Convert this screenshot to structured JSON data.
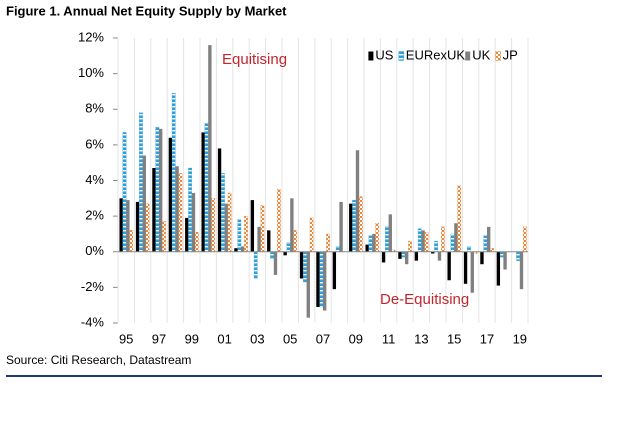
{
  "chart_data": {
    "type": "bar",
    "title": "Figure 1. Annual Net Equity Supply by Market",
    "source": "Source: Citi Research, Datastream",
    "annotations": [
      "Equitising",
      "De-Equitising"
    ],
    "categories": [
      "95",
      null,
      "97",
      null,
      "99",
      null,
      "01",
      null,
      "03",
      null,
      "05",
      null,
      "07",
      null,
      "09",
      null,
      "11",
      null,
      "13",
      null,
      "15",
      null,
      "17",
      null,
      "19"
    ],
    "series": [
      {
        "name": "US",
        "color": "#000000",
        "pattern": "solid",
        "values": [
          3.0,
          2.8,
          4.7,
          6.4,
          1.9,
          6.7,
          5.8,
          0.2,
          2.9,
          1.2,
          -0.2,
          -1.5,
          -3.1,
          -2.1,
          2.7,
          0.4,
          -0.6,
          -0.4,
          -0.5,
          -0.1,
          -1.6,
          -1.8,
          -0.7,
          -1.9,
          0.0
        ]
      },
      {
        "name": "EURexUK",
        "color": "#2e9fd8",
        "pattern": "stripes",
        "values": [
          6.7,
          7.8,
          7.0,
          8.9,
          4.7,
          7.2,
          4.4,
          1.8,
          -1.5,
          -0.4,
          0.5,
          -1.7,
          -3.1,
          0.3,
          2.9,
          0.9,
          1.4,
          -0.3,
          1.3,
          0.6,
          1.0,
          0.3,
          0.9,
          -0.3,
          -0.5
        ]
      },
      {
        "name": "UK",
        "color": "#808080",
        "pattern": "solid",
        "values": [
          2.9,
          5.4,
          6.9,
          4.8,
          3.3,
          11.6,
          2.7,
          0.3,
          1.4,
          -1.3,
          3.0,
          -3.7,
          -3.3,
          2.8,
          5.7,
          1.0,
          2.1,
          -0.7,
          1.2,
          -0.5,
          1.6,
          -2.3,
          1.4,
          -1.0,
          -2.1
        ]
      },
      {
        "name": "JP",
        "color": "#e8883a",
        "pattern": "checker",
        "values": [
          1.2,
          2.7,
          1.7,
          4.4,
          1.1,
          3.0,
          3.3,
          2.0,
          2.6,
          3.5,
          1.2,
          1.9,
          1.0,
          0.0,
          3.1,
          1.6,
          0.1,
          0.6,
          1.1,
          1.4,
          3.7,
          -0.1,
          0.2,
          0.0,
          1.4
        ]
      }
    ],
    "ylim": [
      -4,
      12
    ],
    "yticks": [
      {
        "value": -4,
        "label": "-4%"
      },
      {
        "value": -2,
        "label": "-2%"
      },
      {
        "value": 0,
        "label": "0%"
      },
      {
        "value": 2,
        "label": "2%"
      },
      {
        "value": 4,
        "label": "4%"
      },
      {
        "value": 6,
        "label": "6%"
      },
      {
        "value": 8,
        "label": "8%"
      },
      {
        "value": 10,
        "label": "10%"
      },
      {
        "value": 12,
        "label": "12%"
      }
    ],
    "legend": "top-right",
    "grid": false
  }
}
